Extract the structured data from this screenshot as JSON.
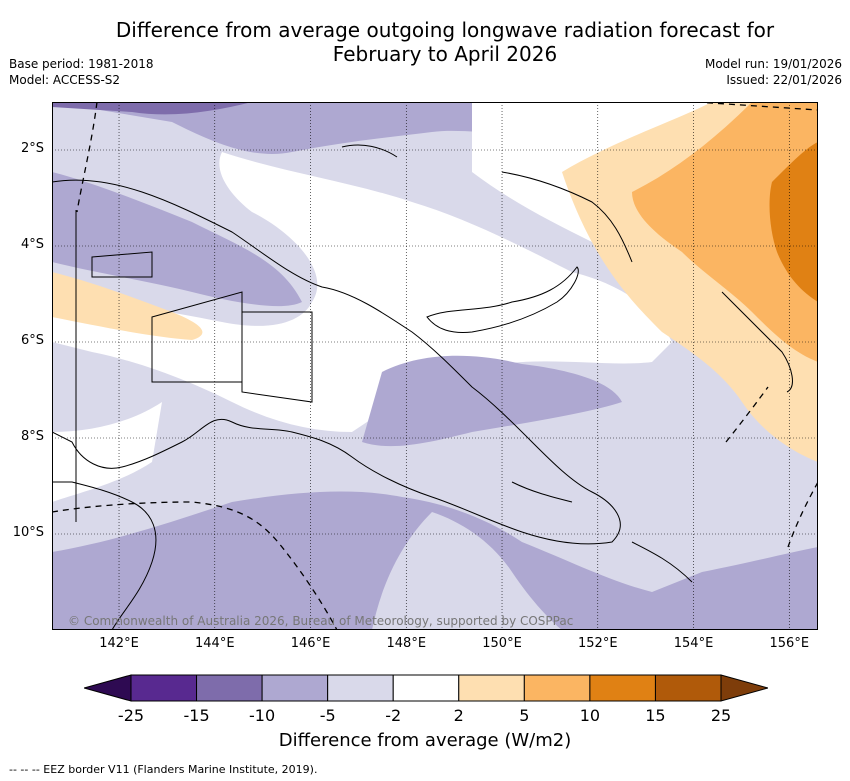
{
  "title": {
    "line1": "Difference from average outgoing longwave radiation forecast for",
    "line2": "February to April 2026"
  },
  "meta": {
    "base_period": "Base period: 1981-2018",
    "model": "Model: ACCESS-S2",
    "model_run": "Model run: 19/01/2026",
    "issued": "Issued: 22/01/2026"
  },
  "map": {
    "lat_labels": [
      "2°S",
      "4°S",
      "6°S",
      "8°S",
      "10°S"
    ],
    "lat_values": [
      -2,
      -4,
      -6,
      -8,
      -10
    ],
    "lon_labels": [
      "142°E",
      "144°E",
      "146°E",
      "148°E",
      "150°E",
      "152°E",
      "154°E",
      "156°E"
    ],
    "lon_values": [
      142,
      144,
      146,
      148,
      150,
      152,
      154,
      156
    ],
    "extent": {
      "lon_min": 140.6,
      "lon_max": 156.6,
      "lat_min": -12,
      "lat_max": -1
    },
    "copyright": "© Commonwealth of Australia 2026, Bureau of Meteorology, supported by COSPPac"
  },
  "colorbar": {
    "ticks": [
      "-25",
      "-15",
      "-10",
      "-5",
      "-2",
      "2",
      "5",
      "10",
      "15",
      "25"
    ],
    "colors": [
      "#582990",
      "#7e6cab",
      "#aea8d1",
      "#d9d9ea",
      "#ffffff",
      "#fedfb1",
      "#fbb562",
      "#e08114",
      "#b05a0a"
    ],
    "extend_low_color": "#2e0a52",
    "extend_high_color": "#7e3d0a",
    "label": "Difference from average (W/m2)"
  },
  "colors": {
    "neg_strong": "#7e6cab",
    "neg_mid": "#aea8d1",
    "neg_light": "#d9d9ea",
    "pos_light": "#fedfb1",
    "pos_mid": "#fbb562",
    "pos_strong": "#e08114"
  },
  "footer": {
    "eez_note": "--  --  -- EEZ border V11 (Flanders Marine Institute, 2019)."
  }
}
